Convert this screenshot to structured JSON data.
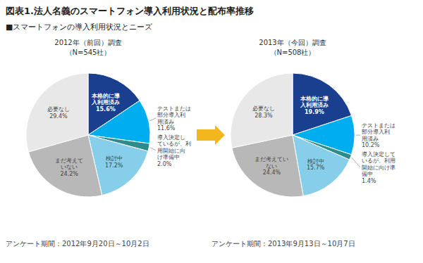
{
  "title": "図表1.法人名義のスマートフォン導入利用状況と配布率推移",
  "subtitle": "■スマートフォンの導入利用状況とニーズ",
  "chart_data": [
    {
      "type": "pie",
      "title": "2012年（前回）調査",
      "subtitle": "（N=545社）",
      "values": [
        15.6,
        11.6,
        2.0,
        17.2,
        24.2,
        29.4
      ],
      "colors": [
        "#1B3F8F",
        "#00ADEF",
        "#2E8B8B",
        "#87CEEB",
        "#B8B8B8",
        "#E8E8E8"
      ],
      "value_labels": [
        "本格的に導\n入利用済み\n15.6%",
        "テストまたは\n部分導入利\n用済み\n11.6%",
        "導入決定し\nているが、利\n用開始に向\nけ準備中\n2.0%",
        "検討中\n17.2%",
        "まだ考えて\nいない\n24.2%",
        "必要なし\n29.4%"
      ],
      "data_labels": true,
      "annotations": [
        "アンケート期間：2012年9月20日～10月2日"
      ]
    },
    {
      "type": "pie",
      "title": "2013年（今回）調査",
      "subtitle": "（N=508社）",
      "values": [
        19.9,
        10.2,
        1.4,
        15.7,
        24.4,
        28.3
      ],
      "colors": [
        "#1B3F8F",
        "#00ADEF",
        "#2E8B8B",
        "#87CEEB",
        "#B8B8B8",
        "#E8E8E8"
      ],
      "value_labels": [
        "本格的に導\n入利用済み\n19.9%",
        "テストまたは\n部分導入利\n用済み\n10.2%",
        "導入決定して\nいるが、利用\n開始に向け準\n備中\n1.4%",
        "検討中\n15.7%",
        "まだ考えてい\nない\n24.4%",
        "必要なし\n28.3%"
      ],
      "data_labels": true,
      "annotations": [
        "アンケート期間：2013年9月13日～10月7日"
      ]
    }
  ]
}
